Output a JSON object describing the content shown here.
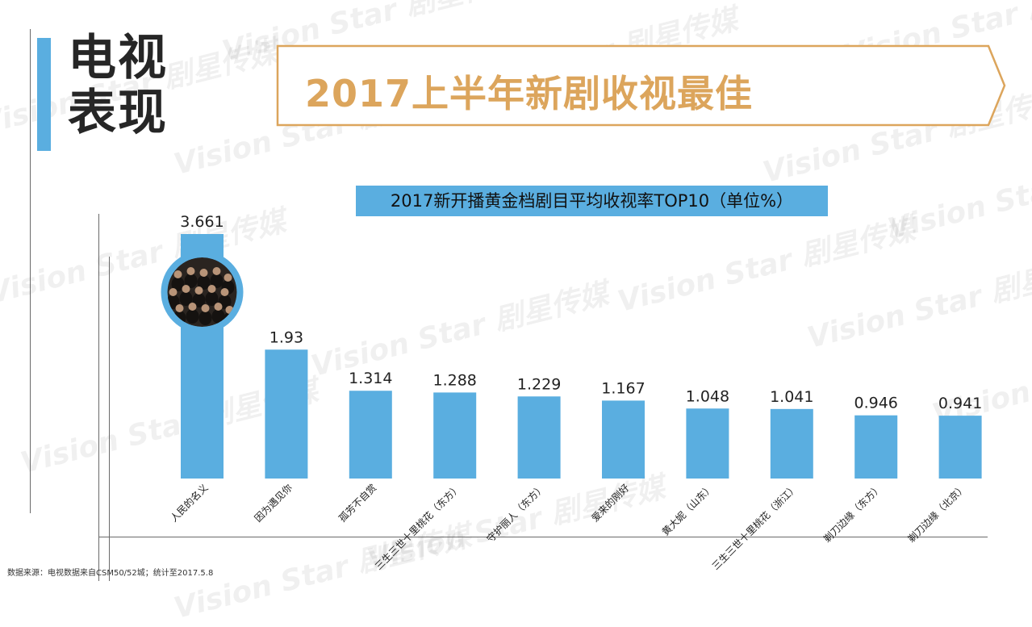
{
  "section_title": [
    "电视",
    "表现"
  ],
  "banner_title": "2017上半年新剧收视最佳",
  "colors": {
    "accent": "#5aaee0",
    "banner": "#dca55c",
    "text": "#262626"
  },
  "watermark": "Vision Star 剧星传媒",
  "source_note": "数据来源：电视数据来自CSM50/52城；统计至2017.5.8",
  "chart_data": {
    "type": "bar",
    "title": "2017新开播黄金档剧目平均收视率TOP10（单位%）",
    "categories": [
      "人民的名义",
      "因为遇见你",
      "孤芳不自赏",
      "三生三世十里桃花（东方）",
      "守护丽人（东方）",
      "爱来的刚好",
      "黄大妮（山东）",
      "三生三世十里桃花（浙江）",
      "剃刀边缘（东方）",
      "剃刀边缘（北京）"
    ],
    "values": [
      3.661,
      1.93,
      1.314,
      1.288,
      1.229,
      1.167,
      1.048,
      1.041,
      0.946,
      0.941
    ],
    "ylim": [
      0,
      3.661
    ],
    "grid": false,
    "legend": "none",
    "color": "#5aaee0",
    "top_bar_image": "cast-photo"
  }
}
